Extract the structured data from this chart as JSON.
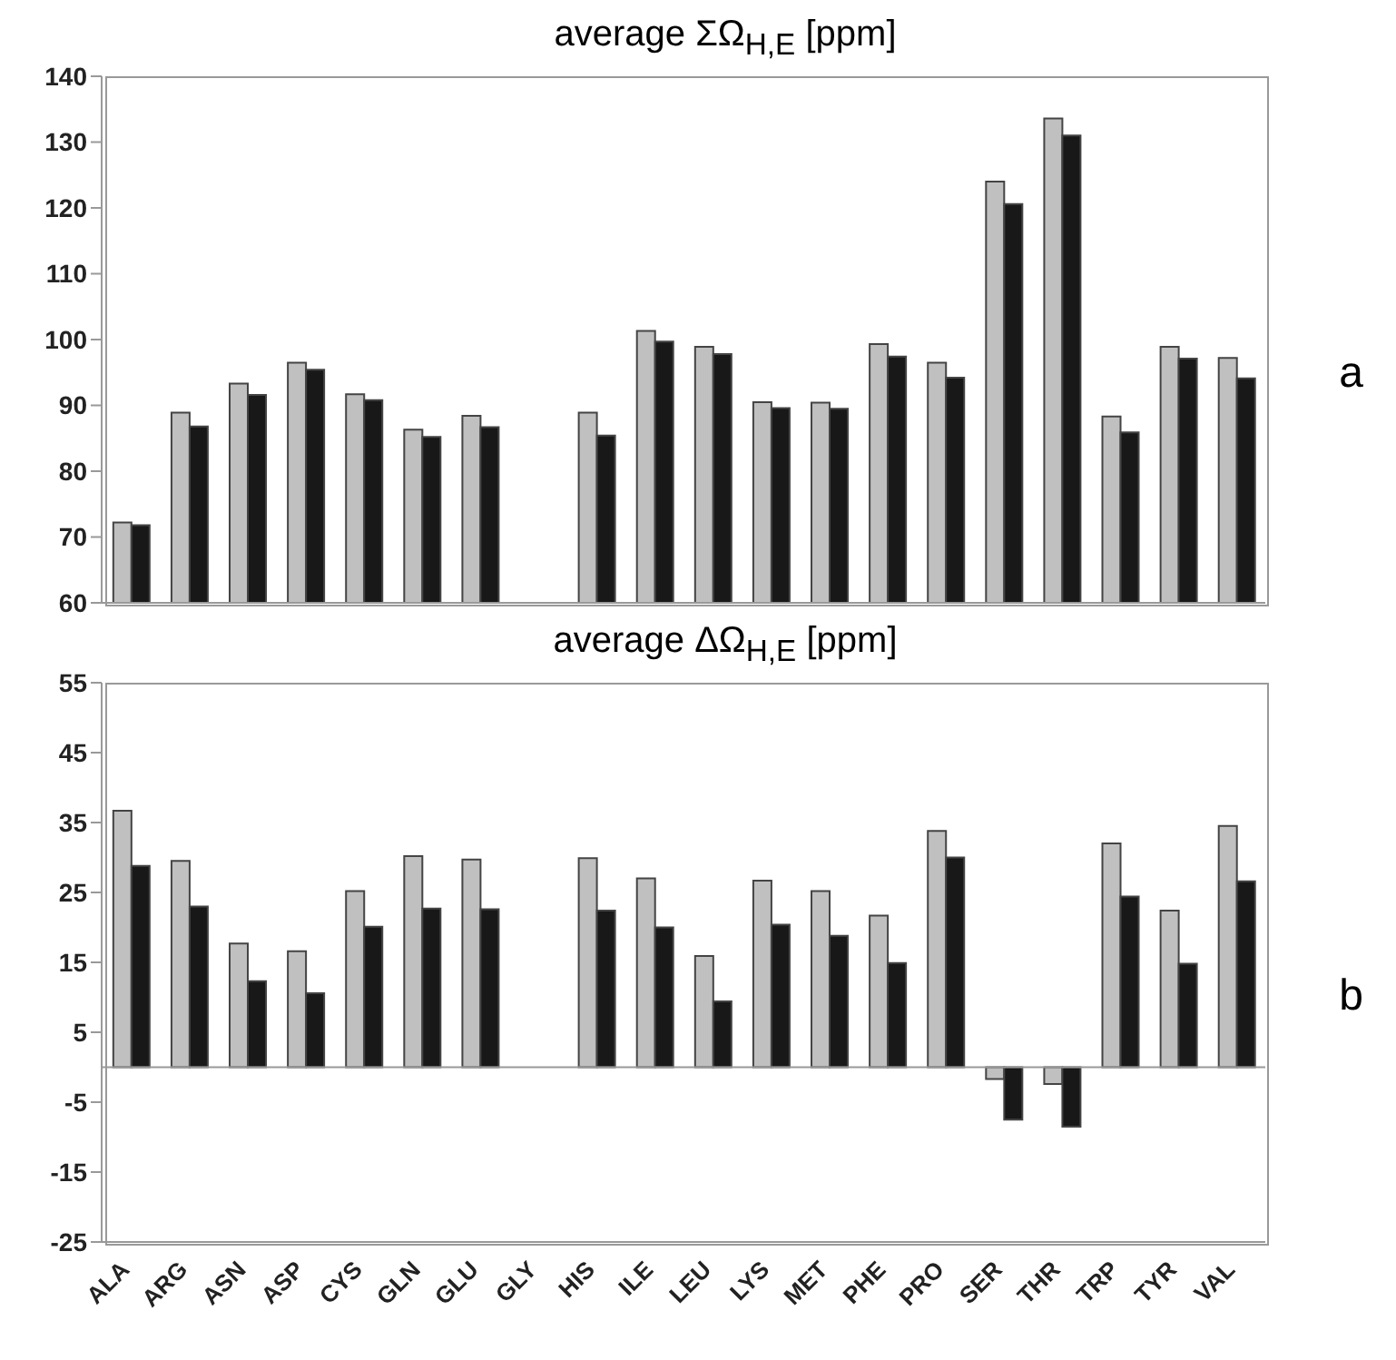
{
  "chart_data": [
    {
      "type": "bar",
      "title": "average ΣΩ$_{H,E}$ [ppm]",
      "annotations": [
        "a"
      ],
      "categories": [
        null,
        null,
        null,
        null,
        null,
        null,
        null,
        null,
        null,
        null,
        null,
        null,
        null,
        null,
        null,
        null,
        null,
        null,
        null,
        null
      ],
      "series": [
        {
          "color": "#c0c0c0",
          "values": [
            72.2,
            88.9,
            93.3,
            96.5,
            91.7,
            86.3,
            88.4,
            null,
            88.9,
            101.3,
            98.9,
            90.5,
            90.4,
            99.3,
            96.5,
            124,
            133.6,
            88.3,
            98.9,
            97.2
          ]
        },
        {
          "color": "#181818",
          "values": [
            71.8,
            86.8,
            91.6,
            95.4,
            90.8,
            85.2,
            86.7,
            null,
            85.4,
            99.7,
            97.8,
            89.6,
            89.5,
            97.4,
            94.2,
            120.6,
            131,
            85.9,
            97.1,
            94.1
          ]
        }
      ],
      "ylim": [
        60,
        140
      ],
      "yticks": [
        60,
        70,
        80,
        90,
        100,
        110,
        120,
        130,
        140
      ],
      "grid": false,
      "legend": false,
      "tick_labels": "y"
    },
    {
      "type": "bar",
      "title": "average ΔΩ$_{H,E}$ [ppm]",
      "annotations": [
        "b"
      ],
      "categories": [
        "ALA",
        "ARG",
        "ASN",
        "ASP",
        "CYS",
        "GLN",
        "GLU",
        "GLY",
        "HIS",
        "ILE",
        "LEU",
        "LYS",
        "MET",
        "PHE",
        "PRO",
        "SER",
        "THR",
        "TRP",
        "TYR",
        "VAL"
      ],
      "series": [
        {
          "color": "#c0c0c0",
          "values": [
            36.7,
            29.5,
            17.7,
            16.6,
            25.2,
            30.2,
            29.7,
            null,
            29.9,
            27,
            15.9,
            26.7,
            25.2,
            21.7,
            33.8,
            -1.7,
            -2.4,
            32,
            22.4,
            34.5
          ]
        },
        {
          "color": "#181818",
          "values": [
            28.8,
            23,
            12.3,
            10.6,
            20.1,
            22.7,
            22.6,
            null,
            22.4,
            20,
            9.4,
            20.4,
            18.8,
            14.9,
            30,
            -7.5,
            -8.5,
            24.4,
            14.8,
            26.6
          ]
        }
      ],
      "ylim": [
        -25,
        55
      ],
      "yticks": [
        -25,
        -15,
        -5,
        5,
        15,
        25,
        35,
        45,
        55
      ],
      "grid": false,
      "legend": false
    }
  ]
}
